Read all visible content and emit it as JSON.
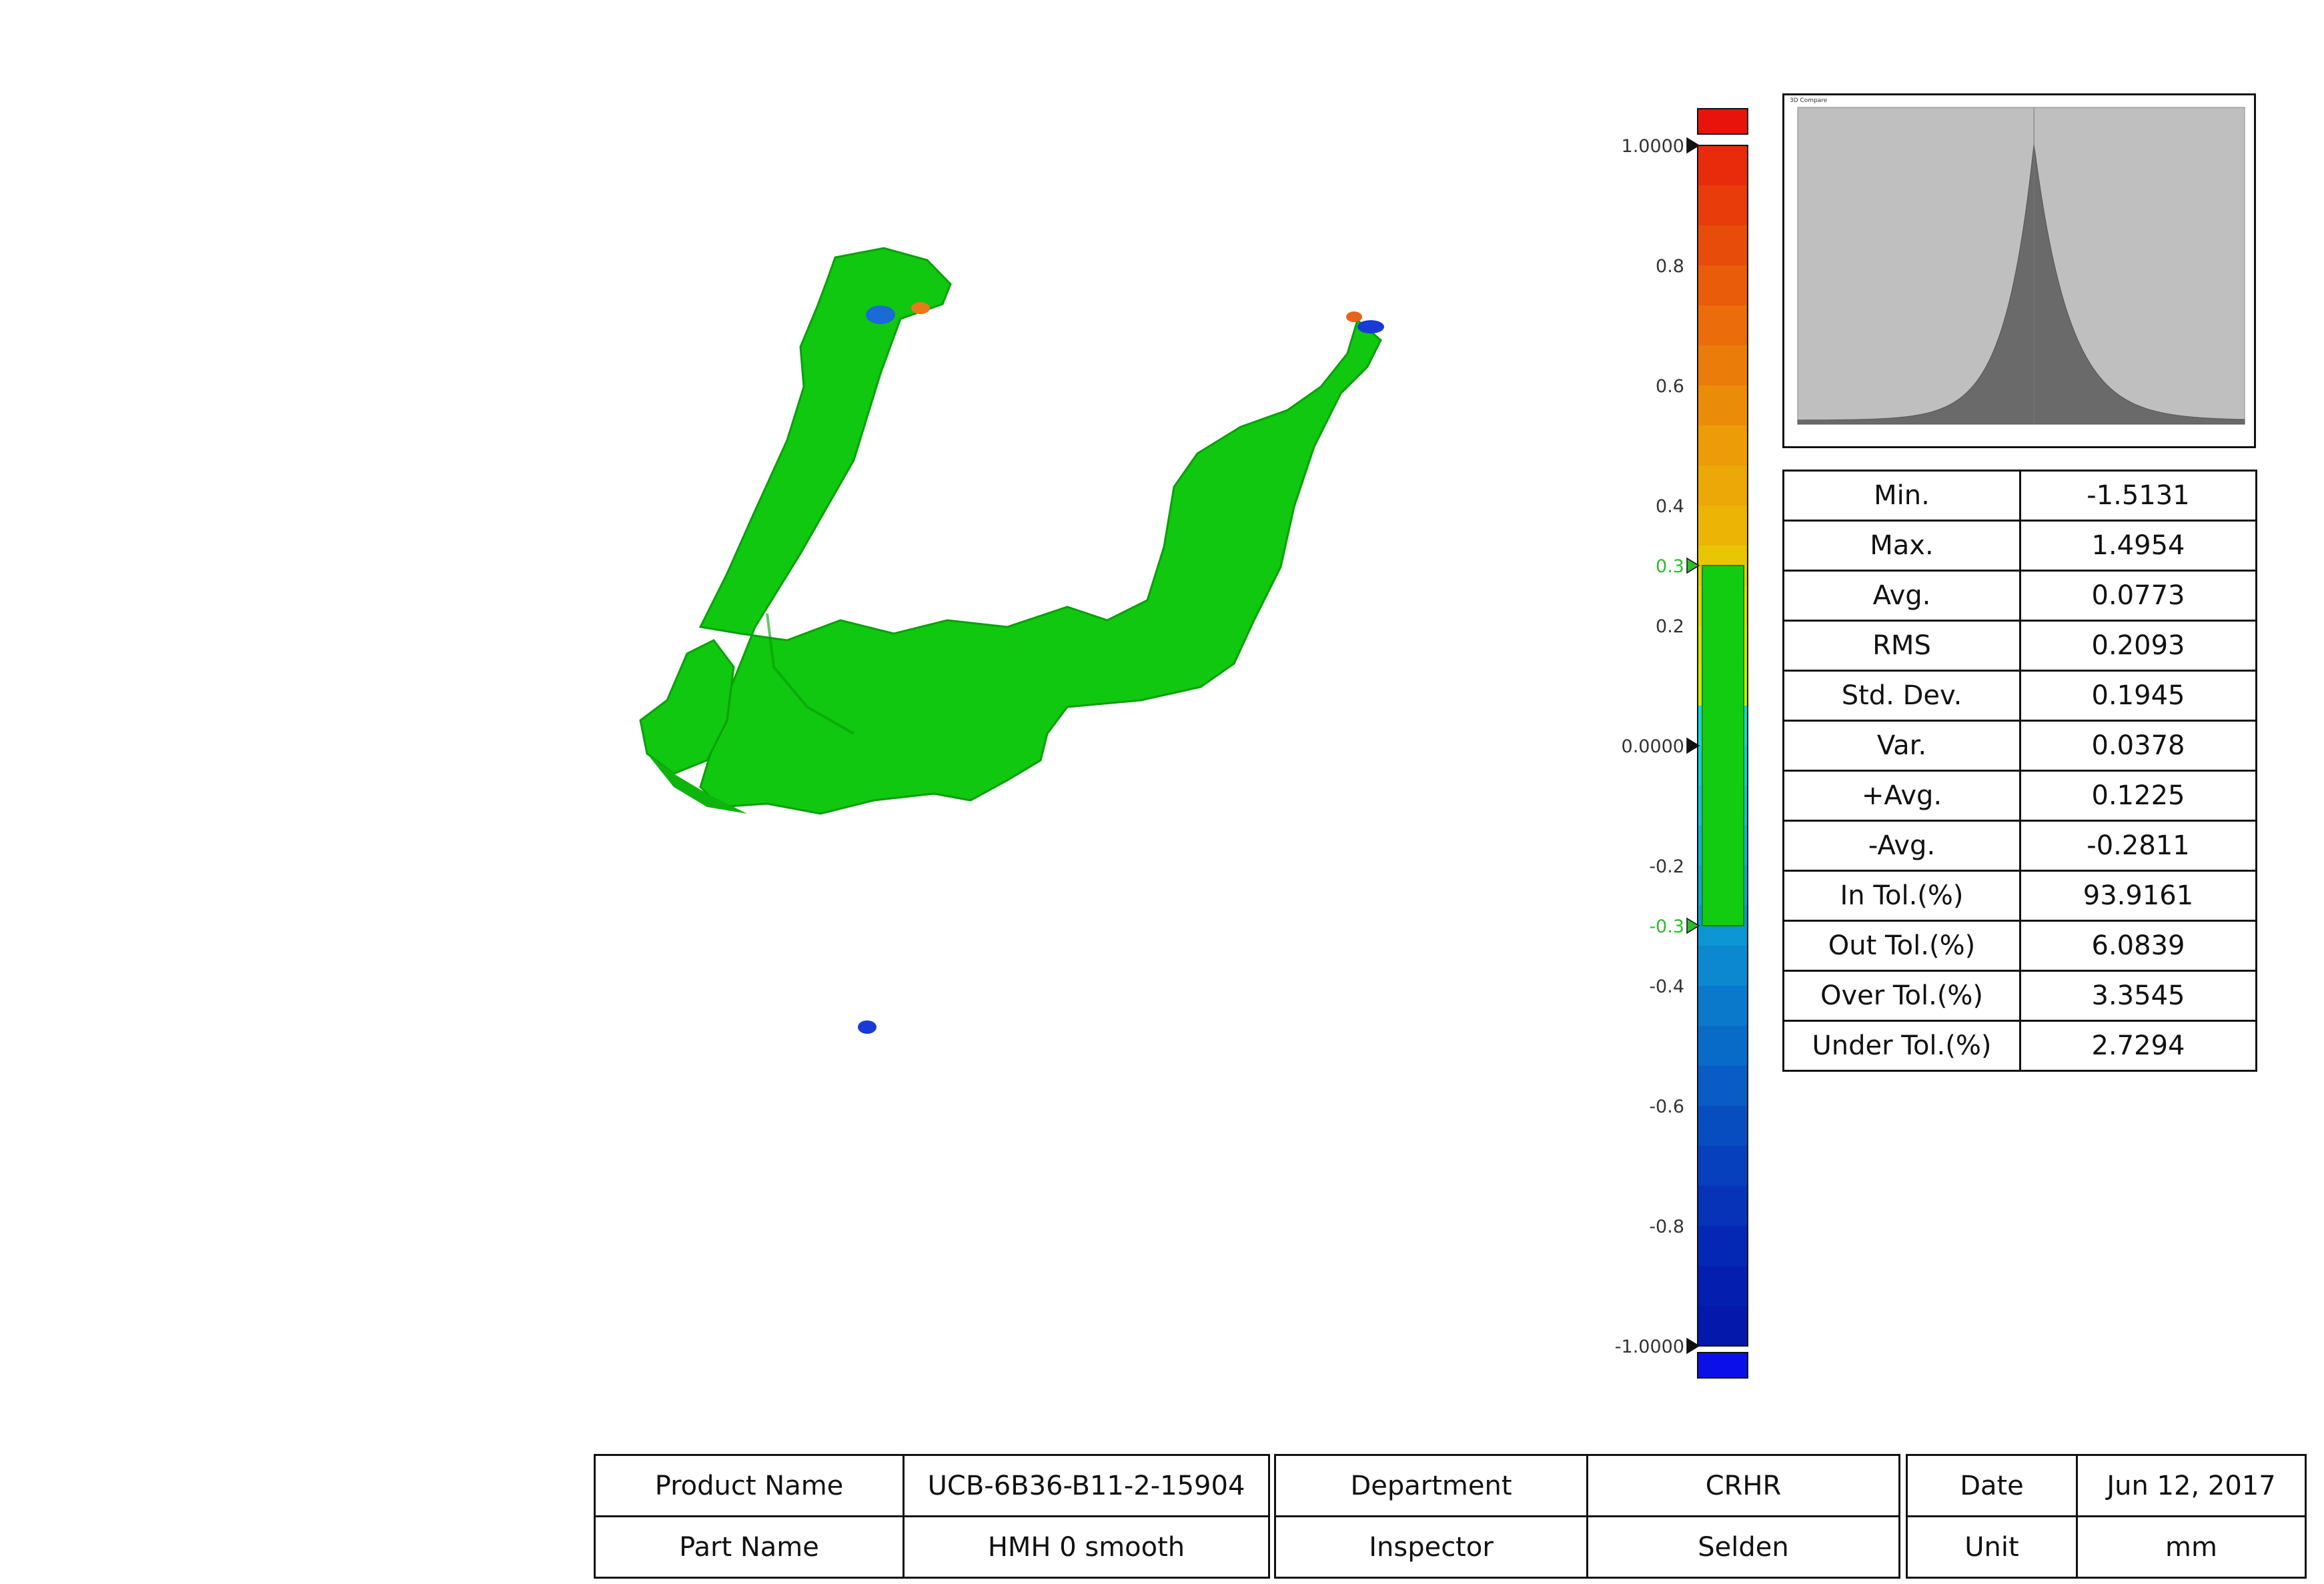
{
  "colors": {
    "model_green": "#10c80f",
    "tolerance_band": "#12cc12",
    "over_cap": "#e8140c",
    "under_cap": "#0c10e8",
    "hist_bg": "#bfbfbf",
    "hist_fill": "#6a6a6a"
  },
  "colorscale": {
    "max_label": "1.0000",
    "min_label": "-1.0000",
    "zero_label": "0.0000",
    "upper_tol_label": "0.3",
    "lower_tol_label": "-0.3",
    "ticks": [
      {
        "value": 0.8,
        "label": "0.8"
      },
      {
        "value": 0.6,
        "label": "0.6"
      },
      {
        "value": 0.4,
        "label": "0.4"
      },
      {
        "value": 0.2,
        "label": "0.2"
      },
      {
        "value": -0.2,
        "label": "-0.2"
      },
      {
        "value": -0.4,
        "label": "-0.4"
      },
      {
        "value": -0.6,
        "label": "-0.6"
      },
      {
        "value": -0.8,
        "label": "-0.8"
      }
    ],
    "bands": [
      "#e72b0b",
      "#e83c0b",
      "#e84c0b",
      "#e95c0a",
      "#ea6c0a",
      "#ea7c09",
      "#eb8c08",
      "#eb9c07",
      "#eca806",
      "#ecb405",
      "#e8c603",
      "#e4d202",
      "#d7e002",
      "#ccea00",
      "#12d8d8",
      "#12cce0",
      "#12c0e0",
      "#0fb0dc",
      "#0ea3d8",
      "#0c96d4",
      "#0b88d0",
      "#0a79cc",
      "#096bc8",
      "#085cc4",
      "#084dc0",
      "#0740bc",
      "#0633b8",
      "#0528b4",
      "#041fb0",
      "#0418ac"
    ]
  },
  "histogram": {
    "title": "3D Compare",
    "x_min": -1.5131,
    "x_max": 1.4954,
    "average": 0.0773,
    "peak_x": 0.0773
  },
  "stats": [
    {
      "label": "Min.",
      "value": "-1.5131"
    },
    {
      "label": "Max.",
      "value": "1.4954"
    },
    {
      "label": "Avg.",
      "value": "0.0773"
    },
    {
      "label": "RMS",
      "value": "0.2093"
    },
    {
      "label": "Std. Dev.",
      "value": "0.1945"
    },
    {
      "label": "Var.",
      "value": "0.0378"
    },
    {
      "label": "+Avg.",
      "value": "0.1225"
    },
    {
      "label": "-Avg.",
      "value": "-0.2811"
    },
    {
      "label": "In Tol.(%)",
      "value": "93.9161"
    },
    {
      "label": "Out Tol.(%)",
      "value": "6.0839"
    },
    {
      "label": "Over Tol.(%)",
      "value": "3.3545"
    },
    {
      "label": "Under Tol.(%)",
      "value": "2.7294"
    }
  ],
  "info": {
    "product_name_label": "Product Name",
    "product_name": "UCB-6B36-B11-2-15904",
    "part_name_label": "Part Name",
    "part_name": "HMH 0 smooth",
    "department_label": "Department",
    "department": "CRHR",
    "inspector_label": "Inspector",
    "inspector": "Selden",
    "date_label": "Date",
    "date": "Jun 12, 2017",
    "unit_label": "Unit",
    "unit": "mm"
  }
}
